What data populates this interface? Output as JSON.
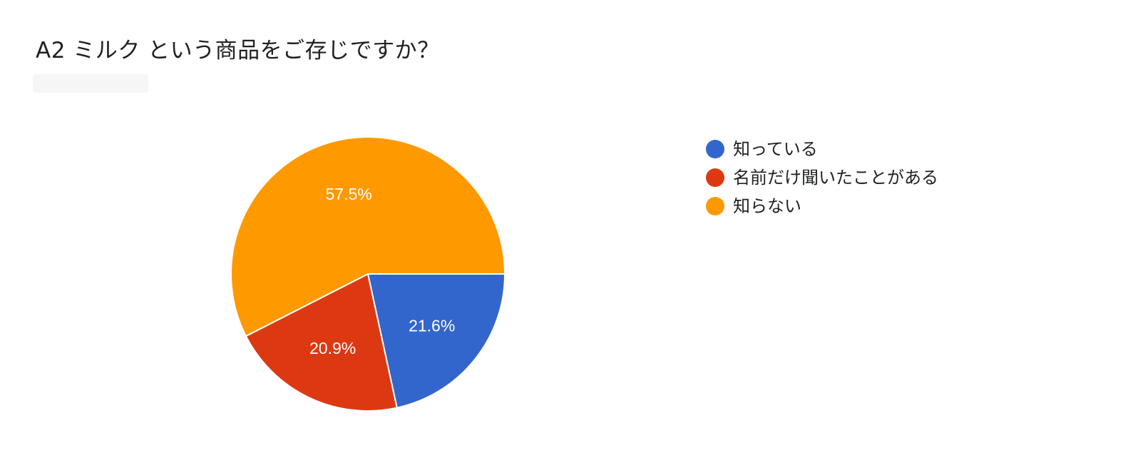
{
  "chart": {
    "title": "A2 ミルク という商品をご存じですか？"
  },
  "chart_data": {
    "type": "pie",
    "title": "A2 ミルク という商品をご存じですか？",
    "categories": [
      "知っている",
      "名前だけ聞いたことがある",
      "知らない"
    ],
    "values": [
      21.6,
      20.9,
      57.5
    ],
    "labels": [
      "21.6%",
      "20.9%",
      "57.5%"
    ],
    "colors": [
      "#3366cc",
      "#dc3912",
      "#ff9900"
    ],
    "legend": "right"
  }
}
